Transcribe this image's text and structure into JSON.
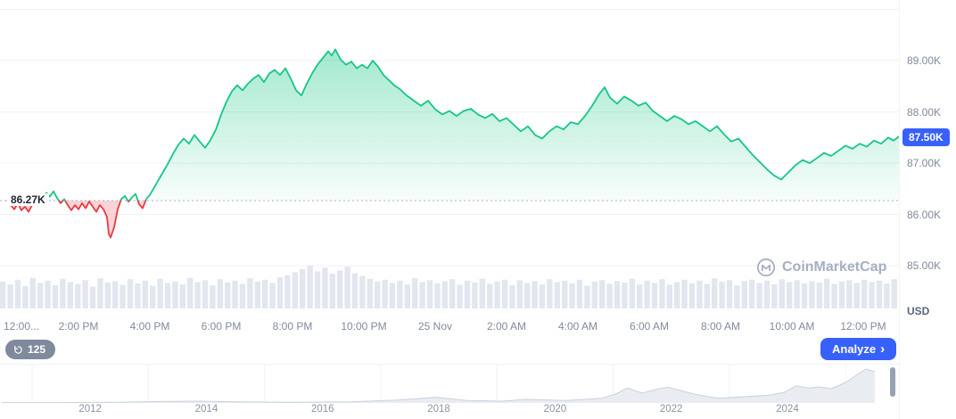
{
  "colors": {
    "up_green": "#16c784",
    "down_red": "#ea3943",
    "accent_blue": "#3861fb",
    "axis_gray": "#808a9d",
    "grid": "#eff2f5",
    "volume_bar": "#e2e6ee",
    "watermark_gray": "#a6b0c3"
  },
  "axis": {
    "usd_label": "USD"
  },
  "price_line": {
    "open_label": "86.27K",
    "current_label": "87.50K"
  },
  "toolbar": {
    "history_count": "125",
    "analyze_label": "Analyze",
    "analyze_chevron": "›"
  },
  "watermark": {
    "text": "CoinMarketCap"
  },
  "chart_data": {
    "type": "line",
    "unit": "USD (thousands)",
    "open_price": 86.27,
    "current_price": 87.5,
    "ylim": [
      85.0,
      90.0
    ],
    "grid_levels": [
      90,
      89,
      88,
      87,
      86,
      85
    ],
    "y_ticks": [
      {
        "v": 89,
        "label": "89.00K"
      },
      {
        "v": 88,
        "label": "88.00K"
      },
      {
        "v": 87,
        "label": "87.00K"
      },
      {
        "v": 86,
        "label": "86.00K"
      },
      {
        "v": 85,
        "label": "85.00K"
      }
    ],
    "x_ticks": [
      {
        "h": 0,
        "label": "12:00..."
      },
      {
        "h": 2,
        "label": "2:00 PM"
      },
      {
        "h": 4,
        "label": "4:00 PM"
      },
      {
        "h": 6,
        "label": "6:00 PM"
      },
      {
        "h": 8,
        "label": "8:00 PM"
      },
      {
        "h": 10,
        "label": "10:00 PM"
      },
      {
        "h": 12,
        "label": "25 Nov"
      },
      {
        "h": 14,
        "label": "2:00 AM"
      },
      {
        "h": 16,
        "label": "4:00 AM"
      },
      {
        "h": 18,
        "label": "6:00 AM"
      },
      {
        "h": 20,
        "label": "8:00 AM"
      },
      {
        "h": 22,
        "label": "10:00 AM"
      },
      {
        "h": 24,
        "label": "12:00 PM"
      }
    ],
    "series": [
      {
        "name": "price",
        "points": [
          [
            0,
            86.28
          ],
          [
            0.1,
            86.18
          ],
          [
            0.2,
            86.1
          ],
          [
            0.3,
            86.22
          ],
          [
            0.4,
            86.08
          ],
          [
            0.5,
            86.15
          ],
          [
            0.6,
            86.05
          ],
          [
            0.7,
            86.18
          ],
          [
            0.8,
            86.28
          ],
          [
            0.9,
            86.2
          ],
          [
            1,
            86.32
          ],
          [
            1.1,
            86.42
          ],
          [
            1.2,
            86.35
          ],
          [
            1.3,
            86.45
          ],
          [
            1.4,
            86.32
          ],
          [
            1.5,
            86.22
          ],
          [
            1.6,
            86.3
          ],
          [
            1.7,
            86.18
          ],
          [
            1.8,
            86.08
          ],
          [
            1.9,
            86.18
          ],
          [
            2,
            86.1
          ],
          [
            2.1,
            86.22
          ],
          [
            2.2,
            86.12
          ],
          [
            2.3,
            86.25
          ],
          [
            2.4,
            86.15
          ],
          [
            2.5,
            86.05
          ],
          [
            2.6,
            86.18
          ],
          [
            2.7,
            86.1
          ],
          [
            2.8,
            85.95
          ],
          [
            2.85,
            85.62
          ],
          [
            2.9,
            85.55
          ],
          [
            3,
            85.75
          ],
          [
            3.1,
            86.1
          ],
          [
            3.2,
            86.3
          ],
          [
            3.3,
            86.36
          ],
          [
            3.4,
            86.25
          ],
          [
            3.5,
            86.33
          ],
          [
            3.6,
            86.4
          ],
          [
            3.7,
            86.2
          ],
          [
            3.8,
            86.12
          ],
          [
            3.9,
            86.3
          ],
          [
            4,
            86.38
          ],
          [
            4.1,
            86.5
          ],
          [
            4.2,
            86.62
          ],
          [
            4.35,
            86.8
          ],
          [
            4.5,
            86.98
          ],
          [
            4.65,
            87.18
          ],
          [
            4.8,
            87.36
          ],
          [
            4.95,
            87.48
          ],
          [
            5.1,
            87.38
          ],
          [
            5.25,
            87.55
          ],
          [
            5.4,
            87.42
          ],
          [
            5.55,
            87.3
          ],
          [
            5.7,
            87.45
          ],
          [
            5.85,
            87.65
          ],
          [
            6,
            87.95
          ],
          [
            6.15,
            88.2
          ],
          [
            6.3,
            88.4
          ],
          [
            6.45,
            88.52
          ],
          [
            6.6,
            88.42
          ],
          [
            6.75,
            88.55
          ],
          [
            6.9,
            88.65
          ],
          [
            7.05,
            88.72
          ],
          [
            7.2,
            88.58
          ],
          [
            7.35,
            88.75
          ],
          [
            7.5,
            88.82
          ],
          [
            7.65,
            88.72
          ],
          [
            7.8,
            88.85
          ],
          [
            7.95,
            88.65
          ],
          [
            8.1,
            88.42
          ],
          [
            8.25,
            88.32
          ],
          [
            8.4,
            88.55
          ],
          [
            8.55,
            88.75
          ],
          [
            8.7,
            88.92
          ],
          [
            8.85,
            89.05
          ],
          [
            9,
            89.18
          ],
          [
            9.1,
            89.1
          ],
          [
            9.2,
            89.22
          ],
          [
            9.35,
            89.02
          ],
          [
            9.5,
            88.92
          ],
          [
            9.65,
            88.98
          ],
          [
            9.8,
            88.85
          ],
          [
            9.95,
            88.92
          ],
          [
            10.1,
            88.85
          ],
          [
            10.25,
            89
          ],
          [
            10.4,
            88.88
          ],
          [
            10.55,
            88.72
          ],
          [
            10.7,
            88.62
          ],
          [
            10.85,
            88.52
          ],
          [
            11,
            88.45
          ],
          [
            11.2,
            88.32
          ],
          [
            11.4,
            88.22
          ],
          [
            11.6,
            88.12
          ],
          [
            11.8,
            88.22
          ],
          [
            12,
            88.05
          ],
          [
            12.2,
            87.95
          ],
          [
            12.4,
            88.02
          ],
          [
            12.6,
            87.92
          ],
          [
            12.8,
            88.02
          ],
          [
            13,
            88.06
          ],
          [
            13.2,
            87.95
          ],
          [
            13.4,
            87.88
          ],
          [
            13.6,
            87.96
          ],
          [
            13.8,
            87.82
          ],
          [
            14,
            87.88
          ],
          [
            14.2,
            87.75
          ],
          [
            14.4,
            87.62
          ],
          [
            14.6,
            87.72
          ],
          [
            14.8,
            87.55
          ],
          [
            15,
            87.48
          ],
          [
            15.2,
            87.62
          ],
          [
            15.4,
            87.72
          ],
          [
            15.6,
            87.66
          ],
          [
            15.8,
            87.8
          ],
          [
            16,
            87.76
          ],
          [
            16.2,
            87.92
          ],
          [
            16.4,
            88.12
          ],
          [
            16.6,
            88.35
          ],
          [
            16.75,
            88.48
          ],
          [
            16.9,
            88.28
          ],
          [
            17.1,
            88.16
          ],
          [
            17.3,
            88.3
          ],
          [
            17.5,
            88.22
          ],
          [
            17.7,
            88.12
          ],
          [
            17.9,
            88.18
          ],
          [
            18.1,
            88.02
          ],
          [
            18.3,
            87.92
          ],
          [
            18.5,
            87.82
          ],
          [
            18.7,
            87.92
          ],
          [
            18.9,
            87.86
          ],
          [
            19.1,
            87.76
          ],
          [
            19.3,
            87.82
          ],
          [
            19.5,
            87.72
          ],
          [
            19.7,
            87.62
          ],
          [
            19.9,
            87.72
          ],
          [
            20.1,
            87.56
          ],
          [
            20.3,
            87.42
          ],
          [
            20.5,
            87.48
          ],
          [
            20.7,
            87.32
          ],
          [
            20.9,
            87.16
          ],
          [
            21.1,
            87.02
          ],
          [
            21.3,
            86.88
          ],
          [
            21.5,
            86.76
          ],
          [
            21.7,
            86.68
          ],
          [
            21.9,
            86.82
          ],
          [
            22.1,
            86.96
          ],
          [
            22.3,
            87.06
          ],
          [
            22.5,
            87
          ],
          [
            22.7,
            87.1
          ],
          [
            22.9,
            87.2
          ],
          [
            23.1,
            87.14
          ],
          [
            23.3,
            87.24
          ],
          [
            23.5,
            87.34
          ],
          [
            23.7,
            87.28
          ],
          [
            23.9,
            87.38
          ],
          [
            24.1,
            87.32
          ],
          [
            24.3,
            87.44
          ],
          [
            24.5,
            87.38
          ],
          [
            24.7,
            87.5
          ],
          [
            24.85,
            87.44
          ],
          [
            25,
            87.52
          ]
        ]
      }
    ],
    "volume": [
      0.58,
      0.52,
      0.62,
      0.48,
      0.66,
      0.55,
      0.6,
      0.5,
      0.64,
      0.57,
      0.53,
      0.61,
      0.47,
      0.65,
      0.56,
      0.59,
      0.51,
      0.63,
      0.54,
      0.6,
      0.49,
      0.64,
      0.55,
      0.58,
      0.52,
      0.66,
      0.57,
      0.61,
      0.5,
      0.63,
      0.56,
      0.6,
      0.53,
      0.65,
      0.58,
      0.62,
      0.55,
      0.67,
      0.72,
      0.78,
      0.85,
      0.92,
      0.8,
      0.88,
      0.75,
      0.82,
      0.9,
      0.76,
      0.7,
      0.64,
      0.58,
      0.62,
      0.55,
      0.6,
      0.52,
      0.65,
      0.57,
      0.61,
      0.54,
      0.59,
      0.63,
      0.51,
      0.6,
      0.56,
      0.64,
      0.53,
      0.58,
      0.62,
      0.5,
      0.61,
      0.55,
      0.59,
      0.52,
      0.63,
      0.57,
      0.6,
      0.54,
      0.62,
      0.49,
      0.58,
      0.61,
      0.53,
      0.59,
      0.56,
      0.64,
      0.52,
      0.6,
      0.55,
      0.63,
      0.51,
      0.57,
      0.62,
      0.54,
      0.6,
      0.53,
      0.65,
      0.58,
      0.61,
      0.5,
      0.59,
      0.62,
      0.55,
      0.6,
      0.52,
      0.63,
      0.57,
      0.61,
      0.54,
      0.59,
      0.56,
      0.64,
      0.53,
      0.58,
      0.61,
      0.55,
      0.62,
      0.57,
      0.6,
      0.54,
      0.63
    ],
    "minimap": {
      "type": "area",
      "year_labels": [
        "2012",
        "2014",
        "2016",
        "2018",
        "2020",
        "2022",
        "2024"
      ],
      "points": [
        [
          2010.5,
          0.01
        ],
        [
          2011.5,
          0.01
        ],
        [
          2012.5,
          0.02
        ],
        [
          2013.2,
          0.04
        ],
        [
          2013.9,
          0.05
        ],
        [
          2014.5,
          0.03
        ],
        [
          2015.5,
          0.02
        ],
        [
          2016.5,
          0.03
        ],
        [
          2017.3,
          0.08
        ],
        [
          2017.95,
          0.16
        ],
        [
          2018.5,
          0.07
        ],
        [
          2019.1,
          0.05
        ],
        [
          2019.5,
          0.1
        ],
        [
          2020.2,
          0.07
        ],
        [
          2020.8,
          0.13
        ],
        [
          2021.05,
          0.25
        ],
        [
          2021.25,
          0.42
        ],
        [
          2021.5,
          0.28
        ],
        [
          2021.8,
          0.4
        ],
        [
          2021.95,
          0.44
        ],
        [
          2022.4,
          0.25
        ],
        [
          2022.8,
          0.13
        ],
        [
          2023.2,
          0.17
        ],
        [
          2023.7,
          0.22
        ],
        [
          2023.95,
          0.3
        ],
        [
          2024.15,
          0.48
        ],
        [
          2024.35,
          0.42
        ],
        [
          2024.55,
          0.45
        ],
        [
          2024.75,
          0.4
        ],
        [
          2024.9,
          0.5
        ],
        [
          2025.05,
          0.62
        ],
        [
          2025.2,
          0.8
        ],
        [
          2025.35,
          0.95
        ],
        [
          2025.5,
          0.88
        ]
      ]
    }
  }
}
